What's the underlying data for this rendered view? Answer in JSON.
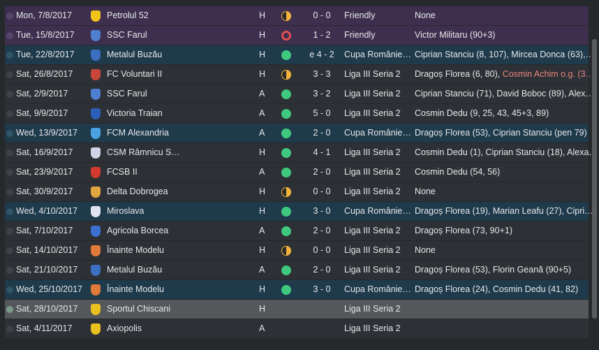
{
  "fixtures": [
    {
      "type": "friendly",
      "date": "Mon, 7/8/2017",
      "opponent": "Petrolul 52",
      "crest": "#f0c419",
      "venue": "H",
      "result": "draw",
      "score": "0 - 0",
      "competition": "Friendly",
      "scorers": "None"
    },
    {
      "type": "friendly",
      "date": "Tue, 15/8/2017",
      "opponent": "SSC Farul",
      "crest": "#4f7fd0",
      "venue": "H",
      "result": "loss",
      "score": "1 - 2",
      "competition": "Friendly",
      "scorers": "Victor Militaru (90+3)"
    },
    {
      "type": "cup",
      "date": "Tue, 22/8/2017",
      "opponent": "Metalul Buzău",
      "crest": "#3d6fc0",
      "venue": "H",
      "result": "win",
      "score": "e 4 - 2",
      "competition": "Cupa Românie…",
      "scorers": "Ciprian Stanciu (8, 107), Mircea Donca (63),…"
    },
    {
      "type": "league",
      "date": "Sat, 26/8/2017",
      "opponent": "FC Voluntari II",
      "crest": "#c9463b",
      "venue": "H",
      "result": "draw",
      "score": "3 - 3",
      "competition": "Liga III Seria 2",
      "scorers": "Dragoș Florea (6, 80), ",
      "scorers_og": "Cosmin Achim o.g. (3…"
    },
    {
      "type": "league",
      "date": "Sat, 2/9/2017",
      "opponent": "SSC Farul",
      "crest": "#4f7fd0",
      "venue": "A",
      "result": "win",
      "score": "3 - 2",
      "competition": "Liga III Seria 2",
      "scorers": "Ciprian Stanciu (71), David Boboc (89), Alex…"
    },
    {
      "type": "league",
      "date": "Sat, 9/9/2017",
      "opponent": "Victoria Traian",
      "crest": "#2c5fb8",
      "venue": "A",
      "result": "win",
      "score": "5 - 0",
      "competition": "Liga III Seria 2",
      "scorers": "Cosmin Dedu (9, 25, 43, 45+3, 89)"
    },
    {
      "type": "cup",
      "date": "Wed, 13/9/2017",
      "opponent": "FCM Alexandria",
      "crest": "#4aa3e0",
      "venue": "A",
      "result": "win",
      "score": "2 - 0",
      "competition": "Cupa Românie…",
      "scorers": "Dragoș Florea (53), Ciprian Stanciu (pen 79)"
    },
    {
      "type": "league",
      "date": "Sat, 16/9/2017",
      "opponent": "CSM Râmnicu S…",
      "crest": "#cfd4e6",
      "venue": "H",
      "result": "win",
      "score": "4 - 1",
      "competition": "Liga III Seria 2",
      "scorers": "Cosmin Dedu (1), Ciprian Stanciu (18), Alexa…"
    },
    {
      "type": "league",
      "date": "Sat, 23/9/2017",
      "opponent": "FCSB II",
      "crest": "#d23a2e",
      "venue": "A",
      "result": "win",
      "score": "2 - 0",
      "competition": "Liga III Seria 2",
      "scorers": "Cosmin Dedu (54, 56)"
    },
    {
      "type": "league",
      "date": "Sat, 30/9/2017",
      "opponent": "Delta Dobrogea",
      "crest": "#e0a640",
      "venue": "H",
      "result": "draw",
      "score": "0 - 0",
      "competition": "Liga III Seria 2",
      "scorers": "None"
    },
    {
      "type": "cup",
      "date": "Wed, 4/10/2017",
      "opponent": "Miroslava",
      "crest": "#dfe4f0",
      "venue": "H",
      "result": "win",
      "score": "3 - 0",
      "competition": "Cupa Românie…",
      "scorers": "Dragoș Florea (19), Marian Leafu (27), Cipri…"
    },
    {
      "type": "league",
      "date": "Sat, 7/10/2017",
      "opponent": "Agricola Borcea",
      "crest": "#3b6fd0",
      "venue": "A",
      "result": "win",
      "score": "2 - 0",
      "competition": "Liga III Seria 2",
      "scorers": "Dragoș Florea (73, 90+1)"
    },
    {
      "type": "league",
      "date": "Sat, 14/10/2017",
      "opponent": "Înainte Modelu",
      "crest": "#e07a3a",
      "venue": "H",
      "result": "draw",
      "score": "0 - 0",
      "competition": "Liga III Seria 2",
      "scorers": "None"
    },
    {
      "type": "league",
      "date": "Sat, 21/10/2017",
      "opponent": "Metalul Buzău",
      "crest": "#3d6fc0",
      "venue": "A",
      "result": "win",
      "score": "2 - 0",
      "competition": "Liga III Seria 2",
      "scorers": "Dragoș Florea (53), Florin Geană (90+5)"
    },
    {
      "type": "cup",
      "date": "Wed, 25/10/2017",
      "opponent": "Înainte Modelu",
      "crest": "#e07a3a",
      "venue": "H",
      "result": "win",
      "score": "3 - 0",
      "competition": "Cupa Românie…",
      "scorers": "Dragoș Florea (24), Cosmin Dedu (41, 82)"
    },
    {
      "type": "current",
      "date": "Sat, 28/10/2017",
      "opponent": "Sportul Chiscani",
      "crest": "#e8c020",
      "venue": "H",
      "result": "",
      "score": "",
      "competition": "Liga III Seria 2",
      "scorers": ""
    },
    {
      "type": "league",
      "date": "Sat, 4/11/2017",
      "opponent": "Axiopolis",
      "crest": "#e8c020",
      "venue": "A",
      "result": "",
      "score": "",
      "competition": "Liga III Seria 2",
      "scorers": ""
    }
  ]
}
